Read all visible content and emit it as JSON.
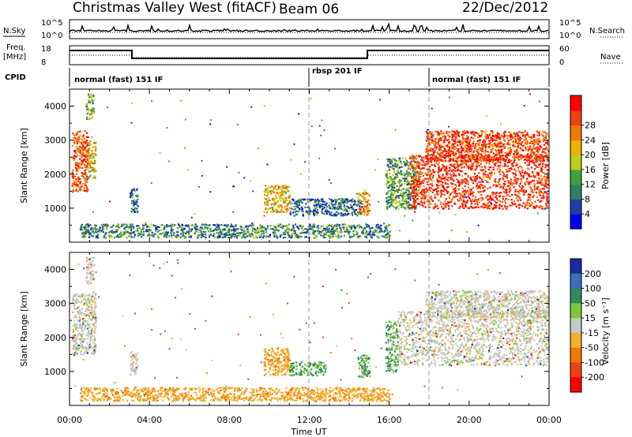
{
  "header": {
    "site_title": "Christmas Valley West (fitACF)",
    "beam": "Beam 06",
    "date": "22/Dec/2012"
  },
  "top_panels": {
    "nsky_label": "N.Sky",
    "nsearch_label": "N.Search",
    "nsky_ticks": [
      "10^5",
      "10^0"
    ],
    "nsearch_ticks": [
      "10^5",
      "10^0"
    ],
    "freq_label_1": "Freq.",
    "freq_label_2": "[MHz]",
    "freq_ticks": [
      "18",
      "8"
    ],
    "nave_label": "Nave",
    "nave_ticks": [
      "60",
      "0"
    ],
    "cpid_label": "CPID",
    "cpid_segments": [
      {
        "label": "normal (fast) 151 IF",
        "start_hour": 0,
        "end_hour": 12
      },
      {
        "label": "rbsp 201 IF",
        "start_hour": 12,
        "end_hour": 18
      },
      {
        "label": "normal (fast) 151 IF",
        "start_hour": 18,
        "end_hour": 24
      }
    ]
  },
  "chart_data": [
    {
      "type": "heatmap",
      "title": "",
      "xlabel": "Time UT",
      "ylabel": "Slant Range [km]",
      "xlim": [
        0,
        24
      ],
      "ylim": [
        0,
        4500
      ],
      "x_tick_labels": [
        "00:00",
        "04:00",
        "08:00",
        "12:00",
        "16:00",
        "20:00",
        "00:00"
      ],
      "y_tick_labels": [
        "1000",
        "2000",
        "3000",
        "4000"
      ],
      "colorbar": {
        "label": "Power [dB]",
        "ticks": [
          "4",
          "8",
          "12",
          "16",
          "20",
          "24",
          "28"
        ],
        "colors": [
          "#0000ee",
          "#1f3ea8",
          "#2e7d6b",
          "#3fa040",
          "#b8d21a",
          "#f0b000",
          "#f07a00",
          "#f04010",
          "#ff0000"
        ]
      },
      "scatter_regions": [
        {
          "t0": 0.1,
          "t1": 0.9,
          "r0": 1500,
          "r1": 3300,
          "value": 26
        },
        {
          "t0": 0.9,
          "t1": 1.3,
          "r0": 1900,
          "r1": 3000,
          "value": 18
        },
        {
          "t0": 0.8,
          "t1": 1.2,
          "r0": 3600,
          "r1": 4400,
          "value": 14
        },
        {
          "t0": 3.0,
          "t1": 3.4,
          "r0": 900,
          "r1": 1600,
          "value": 8
        },
        {
          "t0": 9.7,
          "t1": 11.0,
          "r0": 900,
          "r1": 1700,
          "value": 20
        },
        {
          "t0": 11.0,
          "t1": 14.6,
          "r0": 800,
          "r1": 1300,
          "value": 8
        },
        {
          "t0": 14.4,
          "t1": 15.0,
          "r0": 800,
          "r1": 1500,
          "value": 22
        },
        {
          "t0": 15.8,
          "t1": 17.4,
          "r0": 1000,
          "r1": 2500,
          "value": 12
        },
        {
          "t0": 17.0,
          "t1": 24.0,
          "r0": 1000,
          "r1": 2600,
          "value": 28
        },
        {
          "t0": 17.8,
          "t1": 24.0,
          "r0": 2400,
          "r1": 3300,
          "value": 27
        },
        {
          "t0": 0.5,
          "t1": 16.0,
          "r0": 150,
          "r1": 550,
          "value": 10
        }
      ]
    },
    {
      "type": "heatmap",
      "title": "",
      "xlabel": "Time UT",
      "ylabel": "Slant Range [km]",
      "xlim": [
        0,
        24
      ],
      "ylim": [
        0,
        4500
      ],
      "x_tick_labels": [
        "00:00",
        "04:00",
        "08:00",
        "12:00",
        "16:00",
        "20:00",
        "00:00"
      ],
      "y_tick_labels": [
        "1000",
        "2000",
        "3000",
        "4000"
      ],
      "colorbar": {
        "label": "Velocity [m s⁻¹]",
        "ticks": [
          "200",
          "100",
          "50",
          "15",
          "-15",
          "-50",
          "-100",
          "-200"
        ],
        "colors": [
          "#1a2aa0",
          "#3a6fb8",
          "#2e8a5c",
          "#7ec63a",
          "#c8c8c8",
          "#f0b030",
          "#f07a00",
          "#f04010",
          "#ff0000"
        ]
      },
      "scatter_regions": [
        {
          "t0": 0.1,
          "t1": 1.3,
          "r0": 1500,
          "r1": 3300,
          "value": 0
        },
        {
          "t0": 0.8,
          "t1": 1.2,
          "r0": 3600,
          "r1": 4400,
          "value": 0
        },
        {
          "t0": 3.0,
          "t1": 3.4,
          "r0": 900,
          "r1": 1600,
          "value": 0
        },
        {
          "t0": 9.7,
          "t1": 11.0,
          "r0": 900,
          "r1": 1700,
          "value": -40
        },
        {
          "t0": 11.0,
          "t1": 12.8,
          "r0": 900,
          "r1": 1300,
          "value": 30
        },
        {
          "t0": 14.4,
          "t1": 15.0,
          "r0": 800,
          "r1": 1500,
          "value": 30
        },
        {
          "t0": 15.8,
          "t1": 16.4,
          "r0": 1000,
          "r1": 2500,
          "value": 30
        },
        {
          "t0": 16.4,
          "t1": 24.0,
          "r0": 1200,
          "r1": 2800,
          "value": 0
        },
        {
          "t0": 17.8,
          "t1": 24.0,
          "r0": 2600,
          "r1": 3400,
          "value": 0
        },
        {
          "t0": 0.5,
          "t1": 16.0,
          "r0": 150,
          "r1": 550,
          "value": -40
        }
      ]
    }
  ]
}
